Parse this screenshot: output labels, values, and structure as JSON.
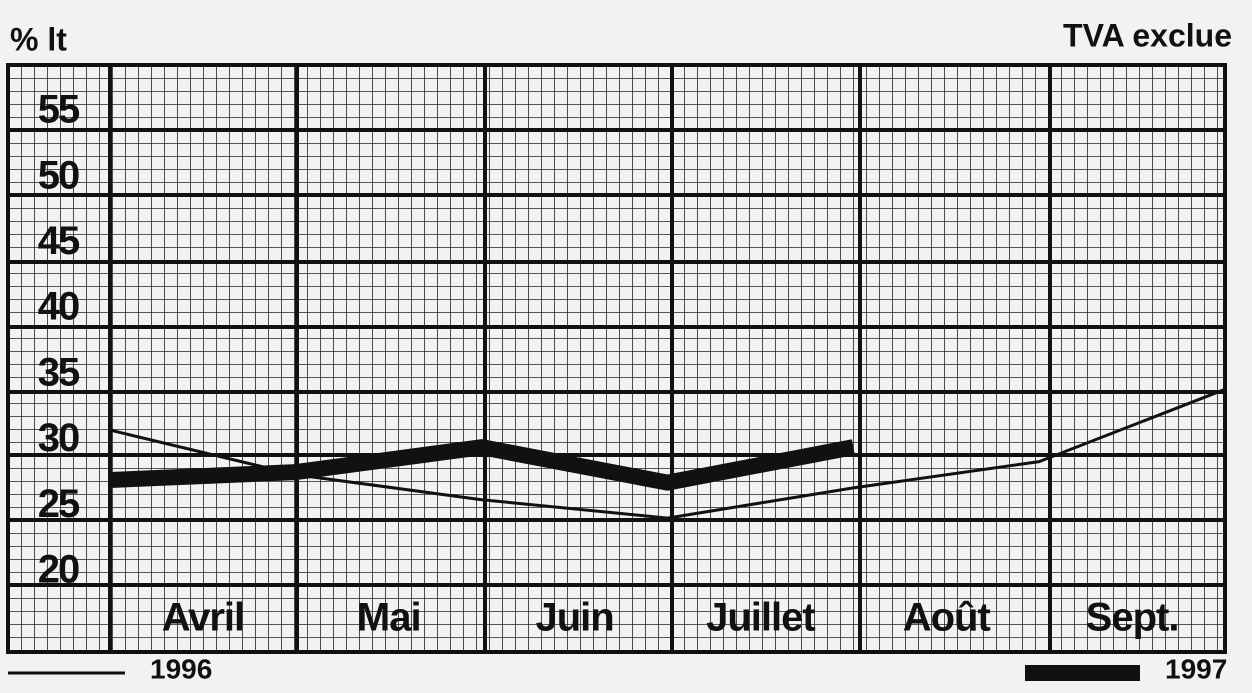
{
  "chart_data": {
    "type": "line",
    "y_label": "% lt",
    "note": "TVA exclue",
    "categories": [
      "Avril",
      "Mai",
      "Juin",
      "Juillet",
      "Août",
      "Sept."
    ],
    "x": [
      0,
      1,
      2,
      3,
      4,
      5,
      6
    ],
    "xlim": [
      0,
      6
    ],
    "ylim": [
      20,
      55
    ],
    "yticks": [
      20,
      25,
      30,
      35,
      40,
      45,
      50,
      55
    ],
    "series": [
      {
        "name": "1996",
        "color": "#111111",
        "values": [
          30.8,
          27.4,
          25.5,
          24.1,
          26.4,
          28.4,
          33.9
        ]
      },
      {
        "name": "1997",
        "color": "#111111",
        "values": [
          27.0,
          27.6,
          29.5,
          26.8,
          29.5,
          null,
          null
        ]
      }
    ]
  }
}
